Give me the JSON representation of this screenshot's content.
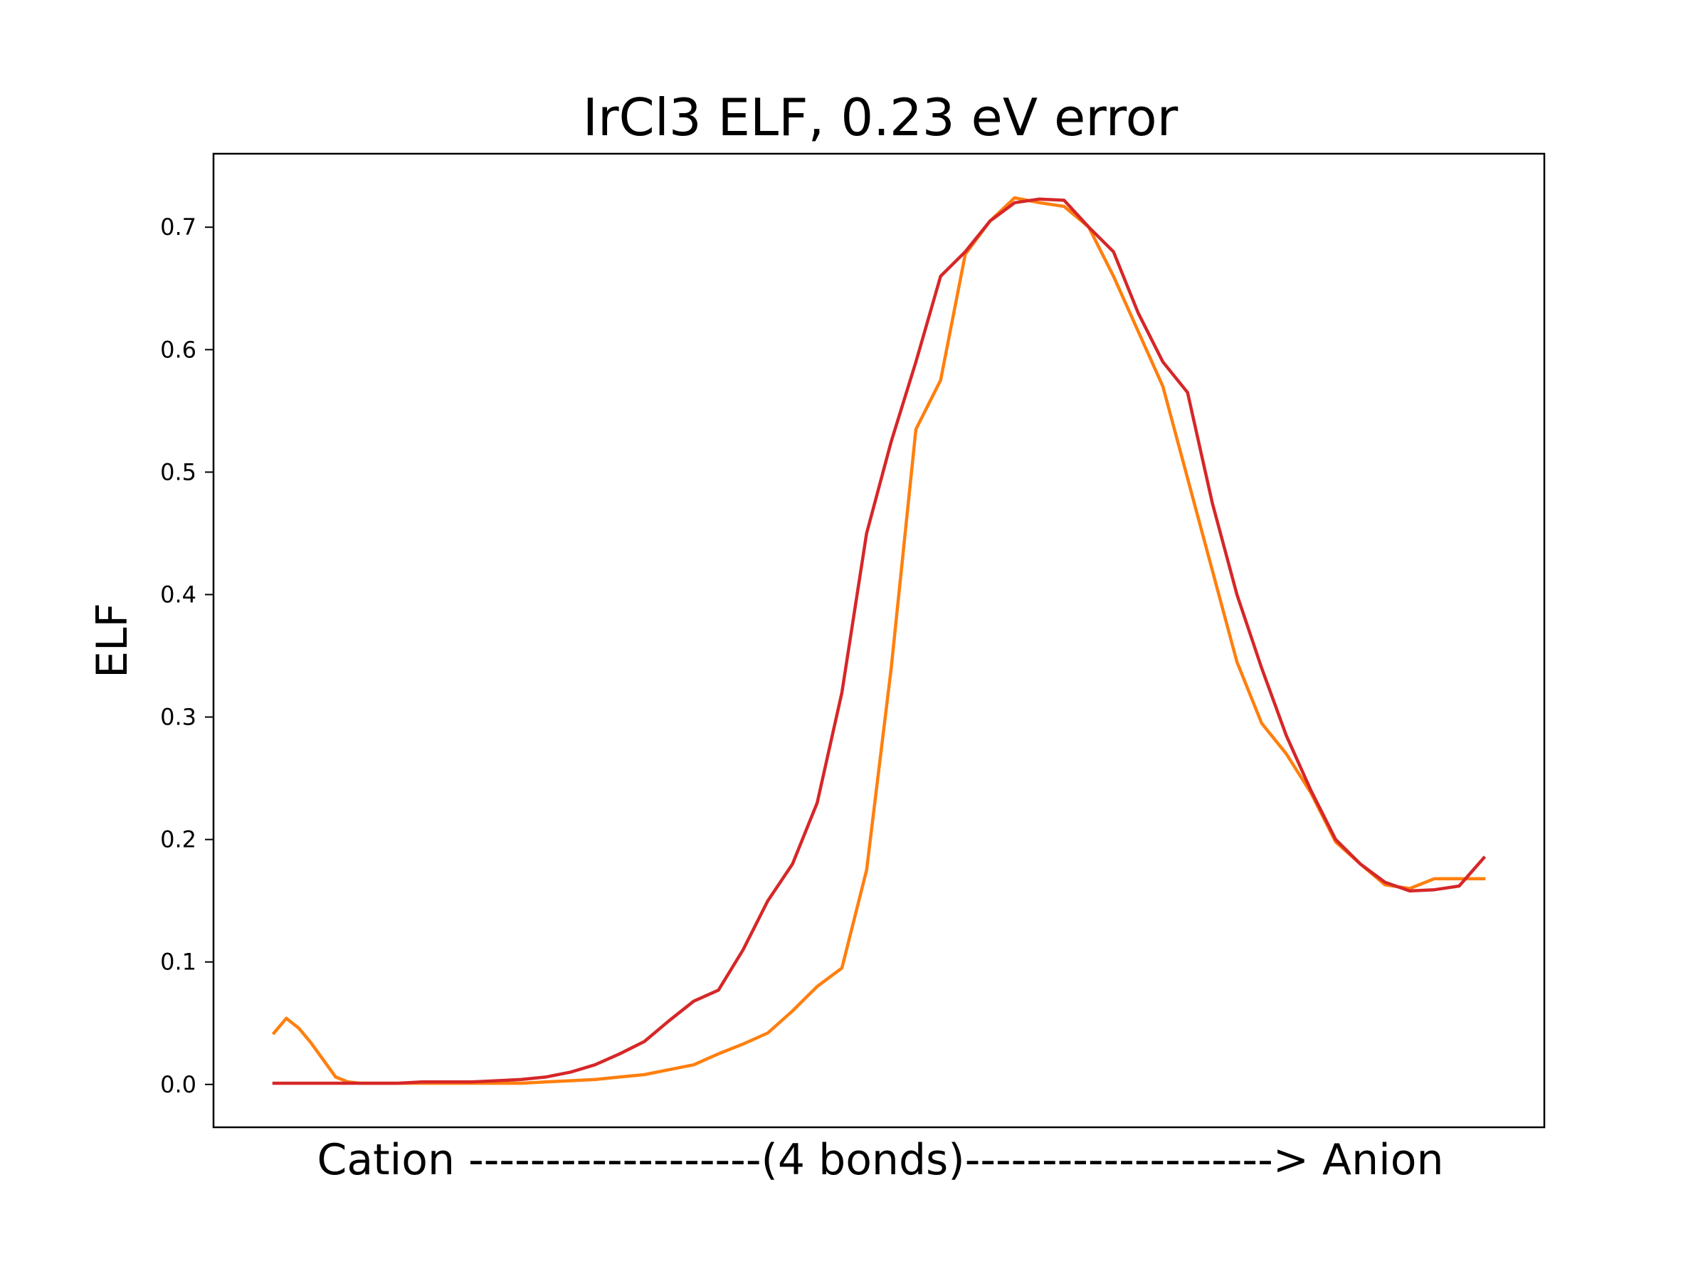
{
  "chart_data": {
    "type": "line",
    "title": "IrCl3 ELF, 0.23 eV error",
    "xlabel": "Cation -------------------(4 bonds)--------------------> Anion",
    "ylabel": "ELF",
    "xlim": [
      -2.45,
      51.45
    ],
    "ylim": [
      -0.035,
      0.76
    ],
    "y_ticks": [
      "0.0",
      "0.1",
      "0.2",
      "0.3",
      "0.4",
      "0.5",
      "0.6",
      "0.7"
    ],
    "grid": false,
    "colors": {
      "orange": "#ff7f0e",
      "red": "#d62728"
    },
    "series": [
      {
        "color": "#ff7f0e",
        "x": [
          0,
          0.5,
          1,
          1.5,
          2,
          2.5,
          3,
          3.5,
          4,
          5,
          6,
          7,
          8,
          9,
          10,
          11,
          12,
          13,
          14,
          15,
          16,
          17,
          18,
          19,
          20,
          21,
          22,
          23,
          24,
          25,
          26,
          27,
          28,
          29,
          30,
          31,
          32,
          33,
          34,
          35,
          36,
          37,
          38,
          39,
          40,
          41,
          42,
          43,
          44,
          45,
          46,
          47,
          48,
          49
        ],
        "y": [
          0.042,
          0.054,
          0.046,
          0.034,
          0.02,
          0.006,
          0.002,
          0.001,
          0.001,
          0.001,
          0.001,
          0.001,
          0.001,
          0.001,
          0.001,
          0.002,
          0.003,
          0.004,
          0.006,
          0.008,
          0.012,
          0.016,
          0.025,
          0.033,
          0.042,
          0.06,
          0.08,
          0.095,
          0.175,
          0.34,
          0.535,
          0.575,
          0.678,
          0.705,
          0.724,
          0.72,
          0.717,
          0.7,
          0.66,
          0.615,
          0.57,
          0.495,
          0.42,
          0.345,
          0.295,
          0.27,
          0.238,
          0.198,
          0.18,
          0.163,
          0.16,
          0.168,
          0.168,
          0.168
        ]
      },
      {
        "color": "#d62728",
        "x": [
          0,
          1,
          2,
          3,
          4,
          5,
          6,
          7,
          8,
          9,
          10,
          11,
          12,
          13,
          14,
          15,
          16,
          17,
          18,
          19,
          20,
          21,
          22,
          23,
          24,
          25,
          26,
          27,
          28,
          29,
          30,
          31,
          32,
          33,
          34,
          35,
          36,
          37,
          38,
          39,
          40,
          41,
          42,
          43,
          44,
          45,
          46,
          47,
          48,
          49
        ],
        "y": [
          0.001,
          0.001,
          0.001,
          0.001,
          0.001,
          0.001,
          0.002,
          0.002,
          0.002,
          0.003,
          0.004,
          0.006,
          0.01,
          0.016,
          0.025,
          0.035,
          0.052,
          0.068,
          0.077,
          0.11,
          0.15,
          0.18,
          0.23,
          0.32,
          0.45,
          0.525,
          0.59,
          0.66,
          0.68,
          0.705,
          0.72,
          0.723,
          0.722,
          0.7,
          0.68,
          0.63,
          0.59,
          0.565,
          0.475,
          0.4,
          0.34,
          0.285,
          0.24,
          0.2,
          0.18,
          0.165,
          0.158,
          0.159,
          0.162,
          0.185
        ]
      }
    ]
  }
}
